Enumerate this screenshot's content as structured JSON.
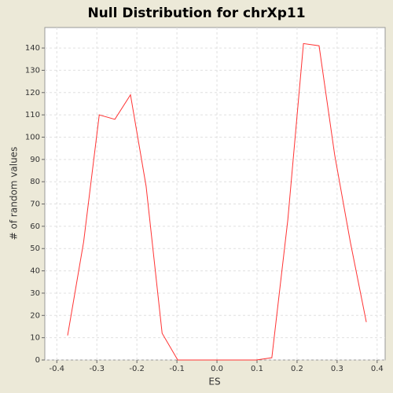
{
  "chart_data": {
    "type": "line",
    "title": "Null Distribution for chrXp11",
    "x_label": "ES",
    "y_label": "# of random values",
    "x": [
      -0.373,
      -0.333,
      -0.294,
      -0.255,
      -0.216,
      -0.177,
      -0.137,
      -0.098,
      -0.059,
      -0.02,
      0.02,
      0.059,
      0.098,
      0.137,
      0.177,
      0.216,
      0.255,
      0.294,
      0.333,
      0.373
    ],
    "series": [
      {
        "name": "null",
        "color": "#ff3333",
        "values": [
          11,
          53,
          110,
          108,
          119,
          78,
          12,
          0,
          0,
          0,
          0,
          0,
          0,
          1,
          63,
          142,
          141,
          92,
          53,
          17
        ]
      }
    ],
    "xlim": [
      -0.43,
      0.42
    ],
    "ylim": [
      0,
      149.2
    ],
    "xticks": [
      -0.4,
      -0.3,
      -0.2,
      -0.1,
      {
        "value": 0,
        "label": "0.0"
      },
      0.1,
      0.2,
      0.3,
      0.4
    ],
    "yticks": [
      0,
      10,
      20,
      30,
      40,
      50,
      60,
      70,
      80,
      90,
      100,
      110,
      120,
      130,
      140
    ],
    "grid": true
  }
}
